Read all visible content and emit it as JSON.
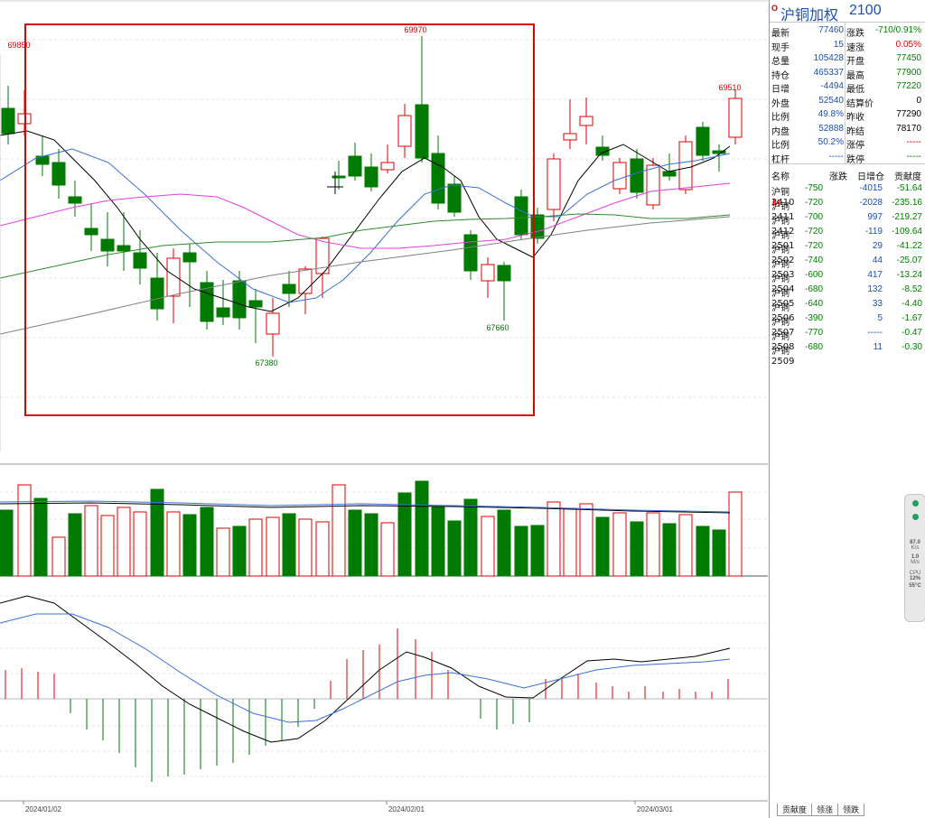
{
  "symbol": {
    "badge": "O",
    "name": "沪铜加权",
    "code": "2100"
  },
  "quote": [
    {
      "l1": "最新",
      "v1": "77460",
      "c1": "blue",
      "l2": "涨跌",
      "v2": "-710/0.91%",
      "c2": "green"
    },
    {
      "l1": "现手",
      "v1": "15",
      "c1": "blue",
      "l2": "速涨",
      "v2": "0.05%",
      "c2": "red"
    },
    {
      "l1": "总量",
      "v1": "105428",
      "c1": "blue",
      "l2": "开盘",
      "v2": "77450",
      "c2": "green"
    },
    {
      "l1": "持仓",
      "v1": "465337",
      "c1": "blue",
      "l2": "最高",
      "v2": "77900",
      "c2": "green"
    },
    {
      "l1": "日增",
      "v1": "-4494",
      "c1": "blue",
      "l2": "最低",
      "v2": "77220",
      "c2": "green"
    },
    {
      "l1": "外盘",
      "v1": "52540",
      "c1": "blue",
      "l2": "结算价",
      "v2": "0",
      "c2": "black"
    },
    {
      "l1": "比例",
      "v1": "49.8%",
      "c1": "blue",
      "l2": "昨收",
      "v2": "77290",
      "c2": "black"
    },
    {
      "l1": "内盘",
      "v1": "52888",
      "c1": "blue",
      "l2": "昨结",
      "v2": "78170",
      "c2": "black"
    },
    {
      "l1": "比例",
      "v1": "50.2%",
      "c1": "blue",
      "l2": "涨停",
      "v2": "-----",
      "c2": "red"
    },
    {
      "l1": "杠杆",
      "v1": "-----",
      "c1": "blue",
      "l2": "跌停",
      "v2": "-----",
      "c2": "green"
    }
  ],
  "contract_list": {
    "headers": {
      "name": "名称",
      "change": "涨跌",
      "oi_change": "日增仓",
      "contribution": "贡献度"
    },
    "rows": [
      {
        "name": "沪铜2410",
        "change": "-750",
        "oi_change": "-4015",
        "oi_color": "blue",
        "contribution": "-51.64",
        "flag": ""
      },
      {
        "name": "沪铜2411",
        "change": "-720",
        "oi_change": "-2028",
        "oi_color": "blue",
        "contribution": "-235.16",
        "flag": "M"
      },
      {
        "name": "沪铜2412",
        "change": "-700",
        "oi_change": "997",
        "oi_color": "blue",
        "contribution": "-219.27",
        "flag": ""
      },
      {
        "name": "沪铜2501",
        "change": "-720",
        "oi_change": "-119",
        "oi_color": "blue",
        "contribution": "-109.64",
        "flag": ""
      },
      {
        "name": "沪铜2502",
        "change": "-720",
        "oi_change": "29",
        "oi_color": "blue",
        "contribution": "-41.22",
        "flag": ""
      },
      {
        "name": "沪铜2503",
        "change": "-740",
        "oi_change": "44",
        "oi_color": "blue",
        "contribution": "-25.07",
        "flag": ""
      },
      {
        "name": "沪铜2504",
        "change": "-600",
        "oi_change": "417",
        "oi_color": "blue",
        "contribution": "-13.24",
        "flag": ""
      },
      {
        "name": "沪铜2505",
        "change": "-680",
        "oi_change": "132",
        "oi_color": "blue",
        "contribution": "-8.52",
        "flag": ""
      },
      {
        "name": "沪铜2506",
        "change": "-640",
        "oi_change": "33",
        "oi_color": "blue",
        "contribution": "-4.40",
        "flag": ""
      },
      {
        "name": "沪铜2507",
        "change": "-390",
        "oi_change": "5",
        "oi_color": "blue",
        "contribution": "-1.67",
        "flag": ""
      },
      {
        "name": "沪铜2508",
        "change": "-770",
        "oi_change": "-----",
        "oi_color": "blue",
        "contribution": "-0.47",
        "flag": ""
      },
      {
        "name": "沪铜2509",
        "change": "-680",
        "oi_change": "11",
        "oi_color": "blue",
        "contribution": "-0.30",
        "flag": ""
      }
    ]
  },
  "tabs": [
    "贡献度",
    "领涨",
    "领跌"
  ],
  "widget": {
    "net_up": "87.0",
    "net_up_unit": "K/s",
    "net_down": "1.0",
    "net_down_unit": "M/s",
    "cpu_label": "CPU",
    "cpu_value": "12%",
    "temp": "55°C"
  },
  "chart_data": {
    "type": "candlestick",
    "date_labels": [
      "2024/01/02",
      "2024/02/01",
      "2024/03/01"
    ],
    "annotations": {
      "high1": "69850",
      "high2": "69970",
      "low1": "67380",
      "low2": "67660",
      "last_high": "69510"
    },
    "colors": {
      "up": "#e00000",
      "down": "#007a00",
      "ma_black": "#000000",
      "ma_blue": "#3a6fd8",
      "ma_magenta": "#e040e0",
      "ma_green": "#2e8b2e",
      "ma_gray": "#808080",
      "highlight_box": "#e00000"
    }
  }
}
